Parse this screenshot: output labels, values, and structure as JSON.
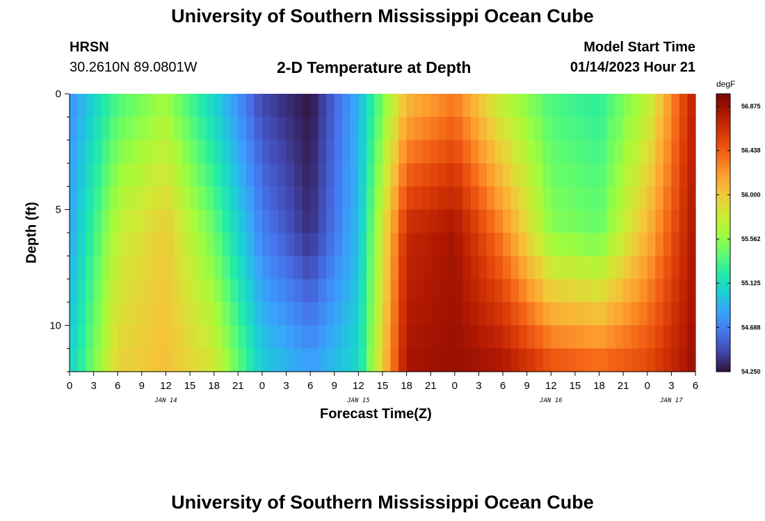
{
  "header": {
    "title": "University of Southern Mississippi Ocean Cube",
    "station": "HRSN",
    "coords": "30.2610N  89.0801W",
    "subtitle": "2-D Temperature at Depth",
    "model_start_label": "Model Start Time",
    "model_start_value": "01/14/2023 Hour 21"
  },
  "footer": {
    "title": "University of Southern Mississippi Ocean Cube"
  },
  "chart_data": {
    "type": "heatmap",
    "title": "2-D Temperature at Depth",
    "xlabel": "Forecast Time(Z)",
    "ylabel": "Depth (ft)",
    "units": "degF",
    "x_hours": [
      0,
      3,
      6,
      9,
      12,
      15,
      18,
      21,
      24,
      27,
      30,
      33,
      36,
      39,
      42,
      45,
      48,
      51,
      54,
      57,
      60,
      63,
      66,
      69,
      72,
      75,
      78
    ],
    "x_tick_labels": [
      "0",
      "3",
      "6",
      "9",
      "12",
      "15",
      "18",
      "21",
      "0",
      "3",
      "6",
      "9",
      "12",
      "15",
      "18",
      "21",
      "0",
      "3",
      "6",
      "9",
      "12",
      "15",
      "18",
      "21",
      "0",
      "3",
      "6"
    ],
    "day_labels": [
      {
        "hour": 12,
        "label": "JAN 14"
      },
      {
        "hour": 36,
        "label": "JAN 15"
      },
      {
        "hour": 60,
        "label": "JAN 16"
      },
      {
        "hour": 75,
        "label": "JAN 17"
      }
    ],
    "y_ticks": [
      0,
      5,
      10
    ],
    "ylim": [
      0,
      12
    ],
    "xlim": [
      0,
      78
    ],
    "depths_ft": [
      0.5,
      1.5,
      2.5,
      3.5,
      4.5,
      5.5,
      6.5,
      7.5,
      8.5,
      9.5,
      10.5,
      11.5
    ],
    "temperature_profile": {
      "hours": [
        0,
        6,
        12,
        18,
        24,
        30,
        36,
        42,
        48,
        54,
        60,
        66,
        72,
        78
      ],
      "depths_ft": [
        0,
        6,
        12
      ],
      "values": [
        [
          54.75,
          54.85,
          55.05
        ],
        [
          55.35,
          55.75,
          55.95
        ],
        [
          55.6,
          56.0,
          56.05
        ],
        [
          55.05,
          55.45,
          55.85
        ],
        [
          54.45,
          54.7,
          55.05
        ],
        [
          54.25,
          54.35,
          54.85
        ],
        [
          54.9,
          54.95,
          55.1
        ],
        [
          56.05,
          56.7,
          56.85
        ],
        [
          56.3,
          56.85,
          56.9
        ],
        [
          55.7,
          56.3,
          56.85
        ],
        [
          55.35,
          55.55,
          56.55
        ],
        [
          55.25,
          55.45,
          56.45
        ],
        [
          55.7,
          56.1,
          56.55
        ],
        [
          56.8,
          56.85,
          56.9
        ]
      ]
    },
    "colorbar": {
      "min": 54.25,
      "max": 57.0,
      "tick_labels": [
        "56.875",
        "56.438",
        "56.000",
        "55.562",
        "55.125",
        "54.688",
        "54.250"
      ],
      "tick_values": [
        56.875,
        56.438,
        56.0,
        55.562,
        55.125,
        54.688,
        54.25
      ],
      "colors": [
        "#30123b",
        "#4145ab",
        "#4675ed",
        "#39a2fc",
        "#1bcfd4",
        "#24eca6",
        "#61fc6c",
        "#a4fc3b",
        "#d1e834",
        "#f3c63a",
        "#fe9b2d",
        "#f36315",
        "#d93806",
        "#b11901",
        "#7a0402"
      ]
    }
  }
}
